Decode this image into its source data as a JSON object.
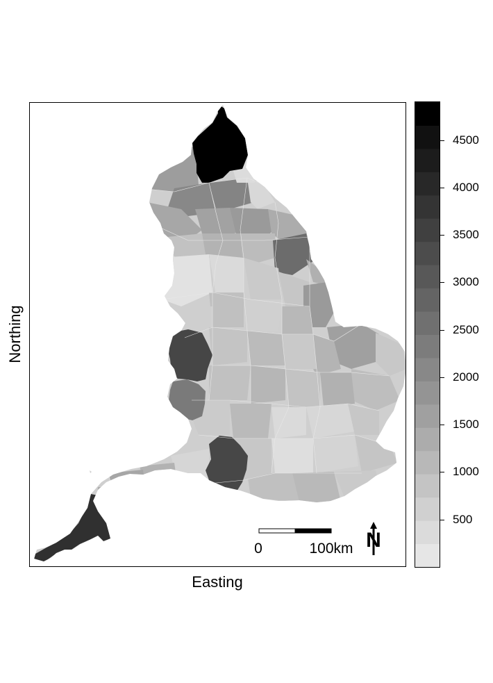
{
  "map": {
    "x_axis_label": "Easting",
    "y_axis_label": "Northing",
    "scale_bar": {
      "start_label": "0",
      "end_label": "100km"
    },
    "north_arrow": {
      "label": "N",
      "icon": "north-arrow-icon"
    }
  },
  "legend": {
    "scale_range": [
      0,
      4900
    ],
    "band_count": 20,
    "colors": [
      "#e6e6e6",
      "#dbdbdb",
      "#d0d0d0",
      "#c4c4c4",
      "#b8b8b8",
      "#acacac",
      "#a0a0a0",
      "#949494",
      "#888888",
      "#7c7c7c",
      "#707070",
      "#646464",
      "#585858",
      "#4c4c4c",
      "#404040",
      "#343434",
      "#282828",
      "#1c1c1c",
      "#111111",
      "#000000"
    ],
    "ticks": [
      {
        "value": 500,
        "label": "500"
      },
      {
        "value": 1000,
        "label": "1000"
      },
      {
        "value": 1500,
        "label": "1500"
      },
      {
        "value": 2000,
        "label": "2000"
      },
      {
        "value": 2500,
        "label": "2500"
      },
      {
        "value": 3000,
        "label": "3000"
      },
      {
        "value": 3500,
        "label": "3500"
      },
      {
        "value": 4000,
        "label": "4000"
      },
      {
        "value": 4500,
        "label": "4500"
      }
    ]
  }
}
